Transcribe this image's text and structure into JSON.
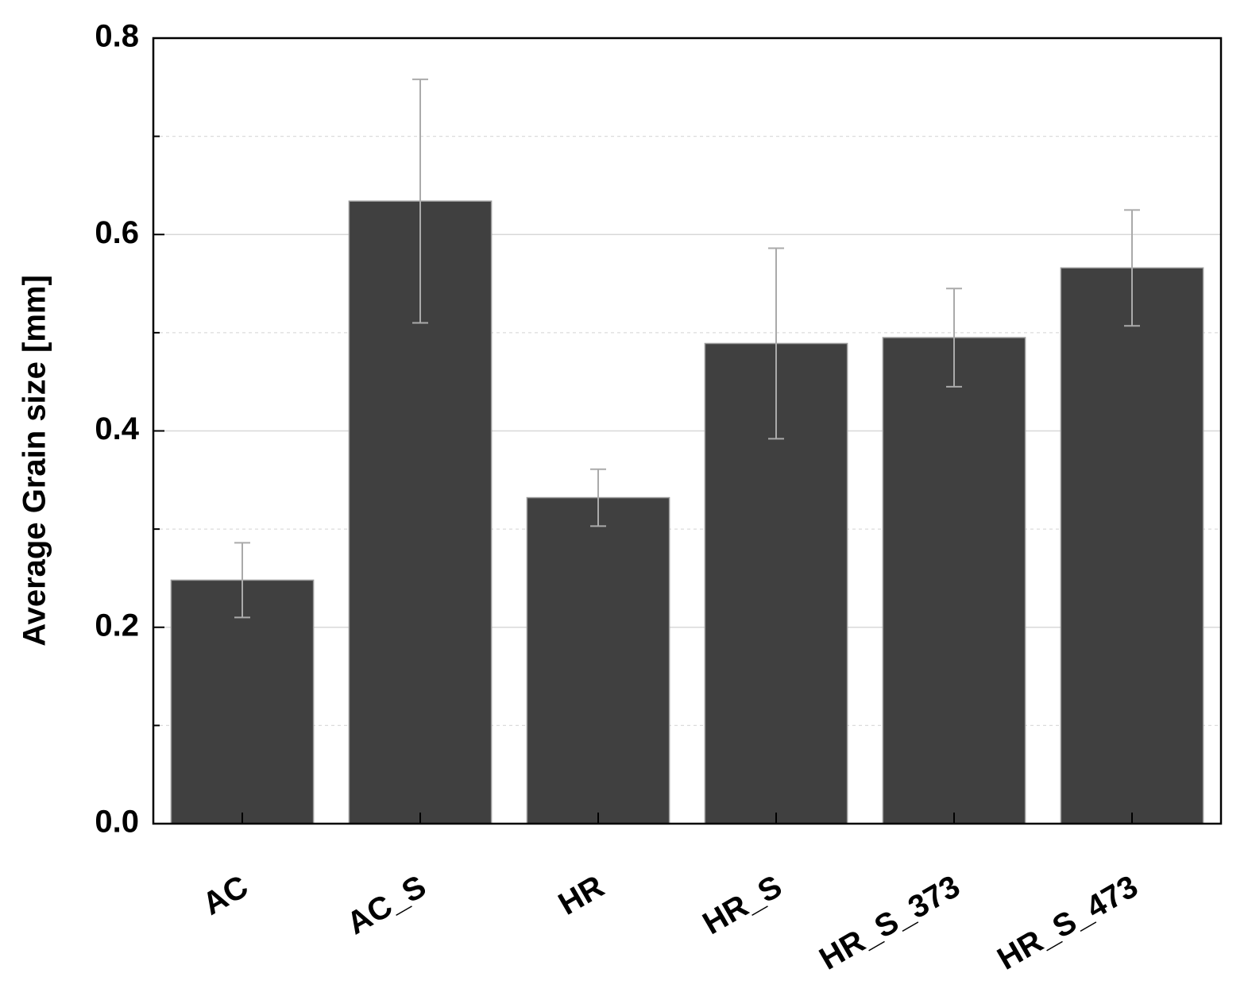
{
  "chart_data": {
    "type": "bar",
    "y_label": "Average Grain size [mm]",
    "categories": [
      "AC",
      "AC_S",
      "HR",
      "HR_S",
      "HR_S_373",
      "HR_S_473"
    ],
    "values": [
      0.248,
      0.634,
      0.332,
      0.489,
      0.495,
      0.566
    ],
    "errors": [
      0.038,
      0.124,
      0.029,
      0.097,
      0.05,
      0.059
    ],
    "color": "#404040",
    "error_color": "#aaaaaa",
    "ylim": [
      0,
      0.8
    ],
    "yticks": [
      {
        "value": 0,
        "label": "0.0"
      },
      0.2,
      0.4,
      0.6,
      0.8
    ],
    "minor_yticks": [
      0.1,
      0.3,
      0.5,
      0.7
    ],
    "grid": true
  }
}
